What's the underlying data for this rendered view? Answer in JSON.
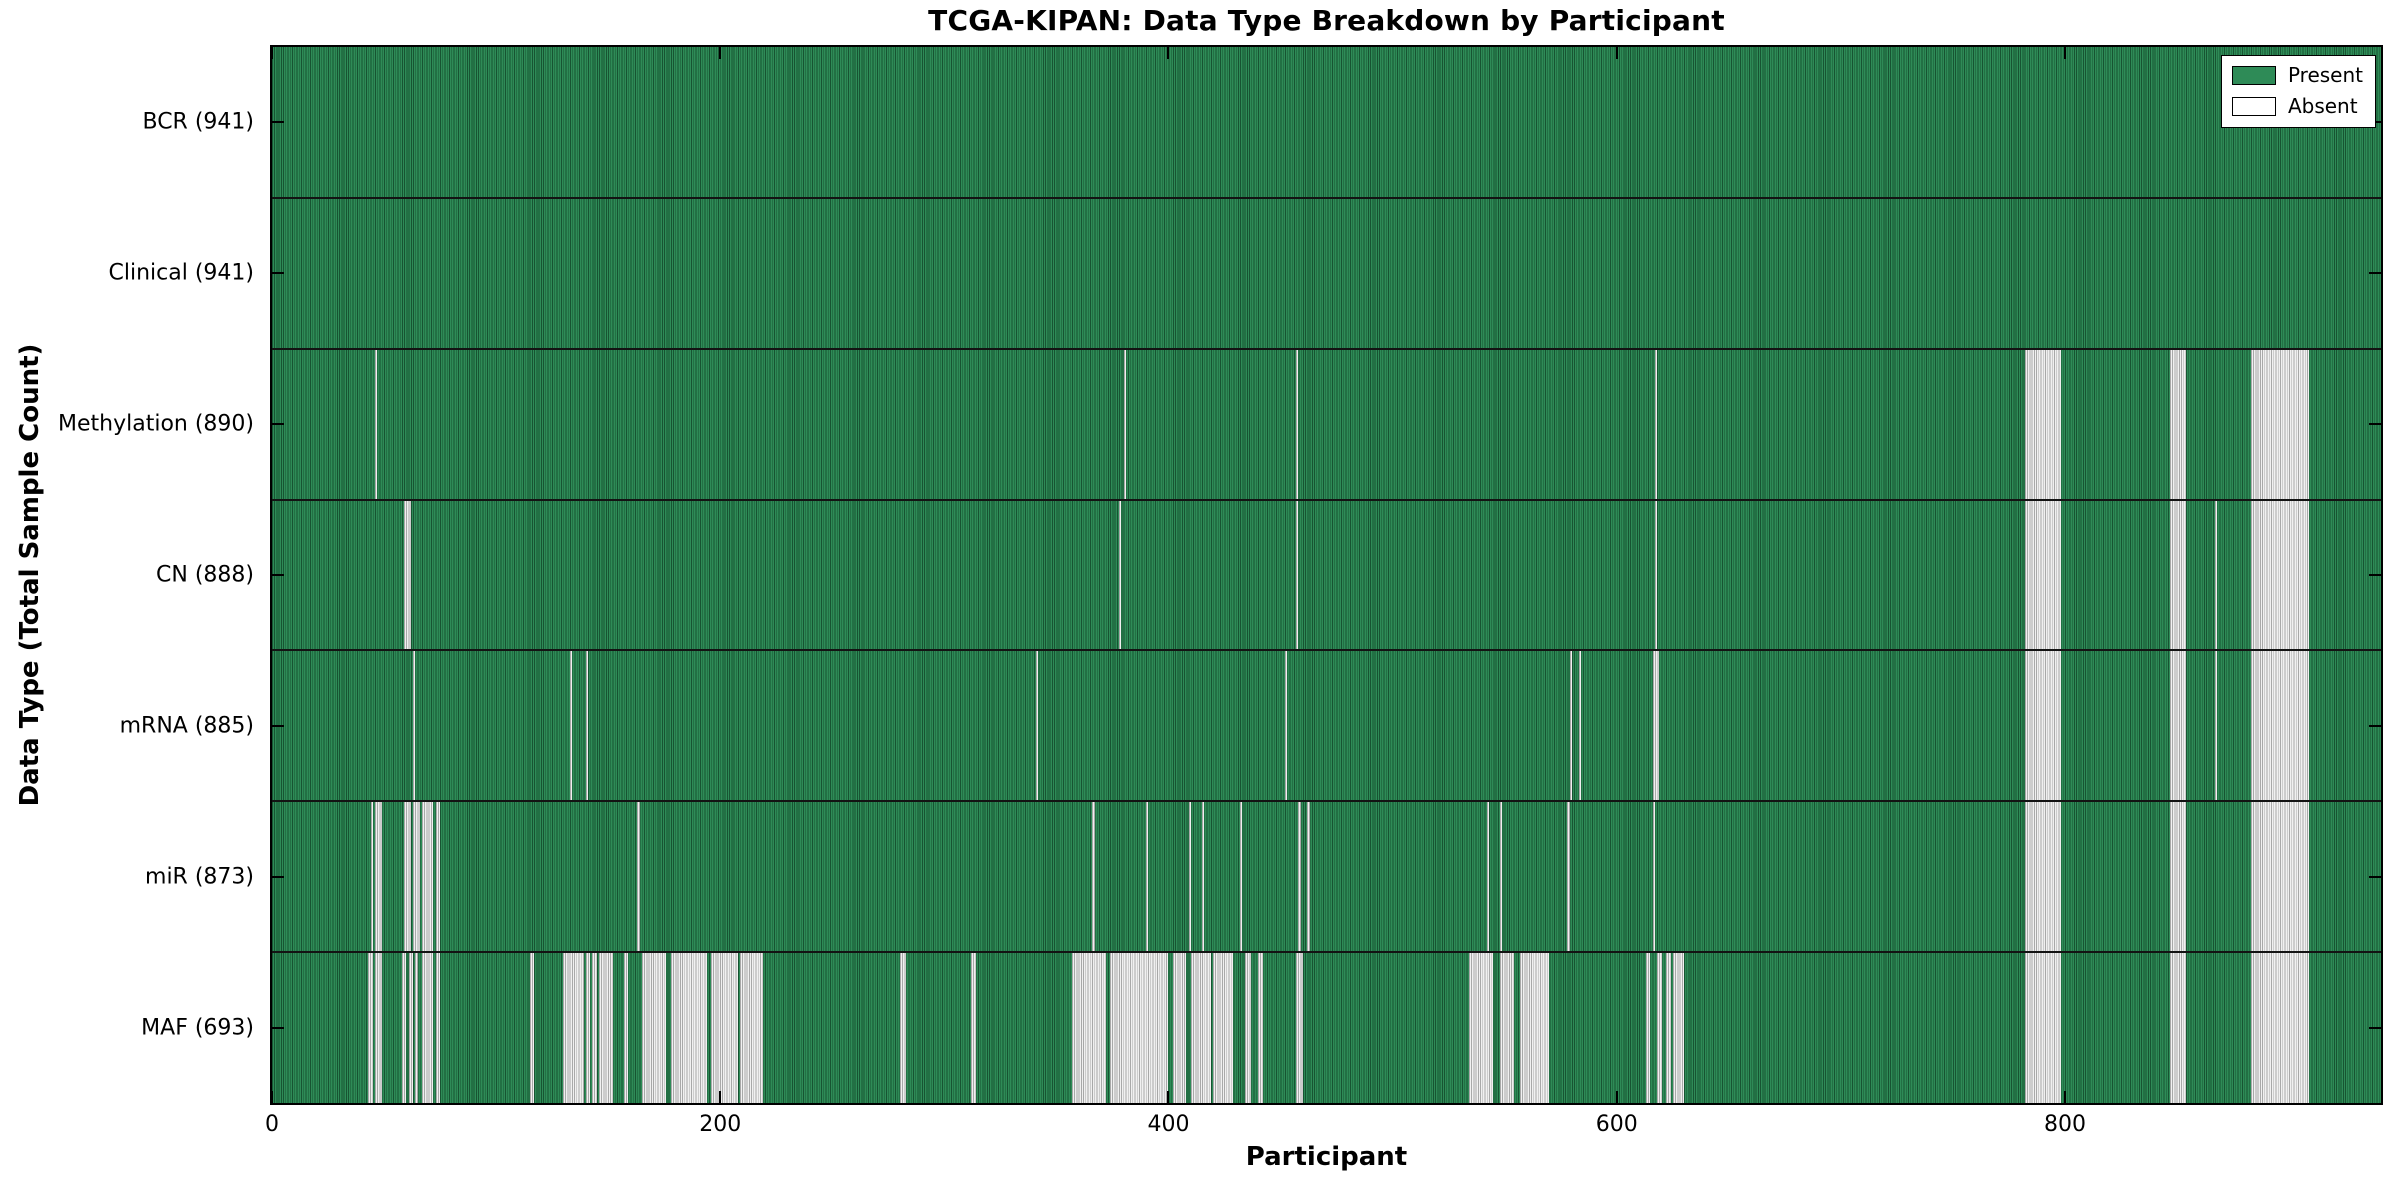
{
  "chart_data": {
    "type": "heatmap",
    "title": "TCGA-KIPAN: Data Type Breakdown by Participant",
    "xlabel": "Participant",
    "ylabel": "Data Type (Total Sample Count)",
    "x_max": 941,
    "x_ticks": [
      0,
      200,
      400,
      600,
      800
    ],
    "grid": false,
    "legend_position": "upper right",
    "legend": [
      {
        "label": "Present",
        "color": "#2e8b57"
      },
      {
        "label": "Absent",
        "color": "#ffffff"
      }
    ],
    "colors": {
      "present_fill": "#2e8b57",
      "present_edge": "#175432",
      "absent_fill": "#f0f0f0",
      "absent_edge": "#a8a8a8",
      "frame": "#000000"
    },
    "rows": [
      {
        "label": "BCR (941)",
        "name": "BCR",
        "total": 941,
        "absent_ranges": []
      },
      {
        "label": "Clinical (941)",
        "name": "Clinical",
        "total": 941,
        "absent_ranges": []
      },
      {
        "label": "Methylation (890)",
        "name": "Methylation",
        "total": 890,
        "absent_ranges": [
          [
            46,
            46
          ],
          [
            380,
            380
          ],
          [
            457,
            457
          ],
          [
            617,
            617
          ],
          [
            782,
            797
          ],
          [
            847,
            853
          ],
          [
            883,
            908
          ]
        ]
      },
      {
        "label": "CN (888)",
        "name": "CN",
        "total": 888,
        "absent_ranges": [
          [
            59,
            61
          ],
          [
            378,
            378
          ],
          [
            457,
            457
          ],
          [
            617,
            617
          ],
          [
            782,
            797
          ],
          [
            847,
            853
          ],
          [
            867,
            867
          ],
          [
            883,
            908
          ]
        ]
      },
      {
        "label": "mRNA (885)",
        "name": "mRNA",
        "total": 885,
        "absent_ranges": [
          [
            63,
            63
          ],
          [
            133,
            133
          ],
          [
            140,
            140
          ],
          [
            341,
            341
          ],
          [
            452,
            452
          ],
          [
            579,
            579
          ],
          [
            583,
            583
          ],
          [
            616,
            618
          ],
          [
            782,
            797
          ],
          [
            847,
            853
          ],
          [
            867,
            867
          ],
          [
            883,
            908
          ]
        ]
      },
      {
        "label": "miR (873)",
        "name": "miR",
        "total": 873,
        "absent_ranges": [
          [
            44,
            44
          ],
          [
            46,
            48
          ],
          [
            59,
            61
          ],
          [
            63,
            65
          ],
          [
            67,
            71
          ],
          [
            73,
            74
          ],
          [
            163,
            163
          ],
          [
            366,
            366
          ],
          [
            390,
            390
          ],
          [
            409,
            409
          ],
          [
            415,
            415
          ],
          [
            432,
            432
          ],
          [
            458,
            458
          ],
          [
            462,
            462
          ],
          [
            542,
            542
          ],
          [
            548,
            548
          ],
          [
            578,
            578
          ],
          [
            616,
            616
          ],
          [
            782,
            797
          ],
          [
            847,
            853
          ],
          [
            883,
            908
          ]
        ]
      },
      {
        "label": "MAF (693)",
        "name": "MAF",
        "total": 693,
        "absent_ranges": [
          [
            43,
            44
          ],
          [
            46,
            48
          ],
          [
            58,
            59
          ],
          [
            61,
            62
          ],
          [
            64,
            64
          ],
          [
            67,
            71
          ],
          [
            73,
            74
          ],
          [
            115,
            116
          ],
          [
            130,
            138
          ],
          [
            140,
            141
          ],
          [
            143,
            144
          ],
          [
            146,
            151
          ],
          [
            157,
            158
          ],
          [
            165,
            175
          ],
          [
            178,
            193
          ],
          [
            196,
            207
          ],
          [
            209,
            218
          ],
          [
            280,
            282
          ],
          [
            312,
            313
          ],
          [
            357,
            371
          ],
          [
            374,
            399
          ],
          [
            402,
            407
          ],
          [
            410,
            418
          ],
          [
            420,
            428
          ],
          [
            434,
            436
          ],
          [
            440,
            441
          ],
          [
            457,
            459
          ],
          [
            534,
            544
          ],
          [
            548,
            553
          ],
          [
            557,
            569
          ],
          [
            613,
            614
          ],
          [
            618,
            619
          ],
          [
            622,
            623
          ],
          [
            625,
            629
          ],
          [
            782,
            797
          ],
          [
            847,
            853
          ],
          [
            883,
            908
          ]
        ]
      }
    ]
  }
}
